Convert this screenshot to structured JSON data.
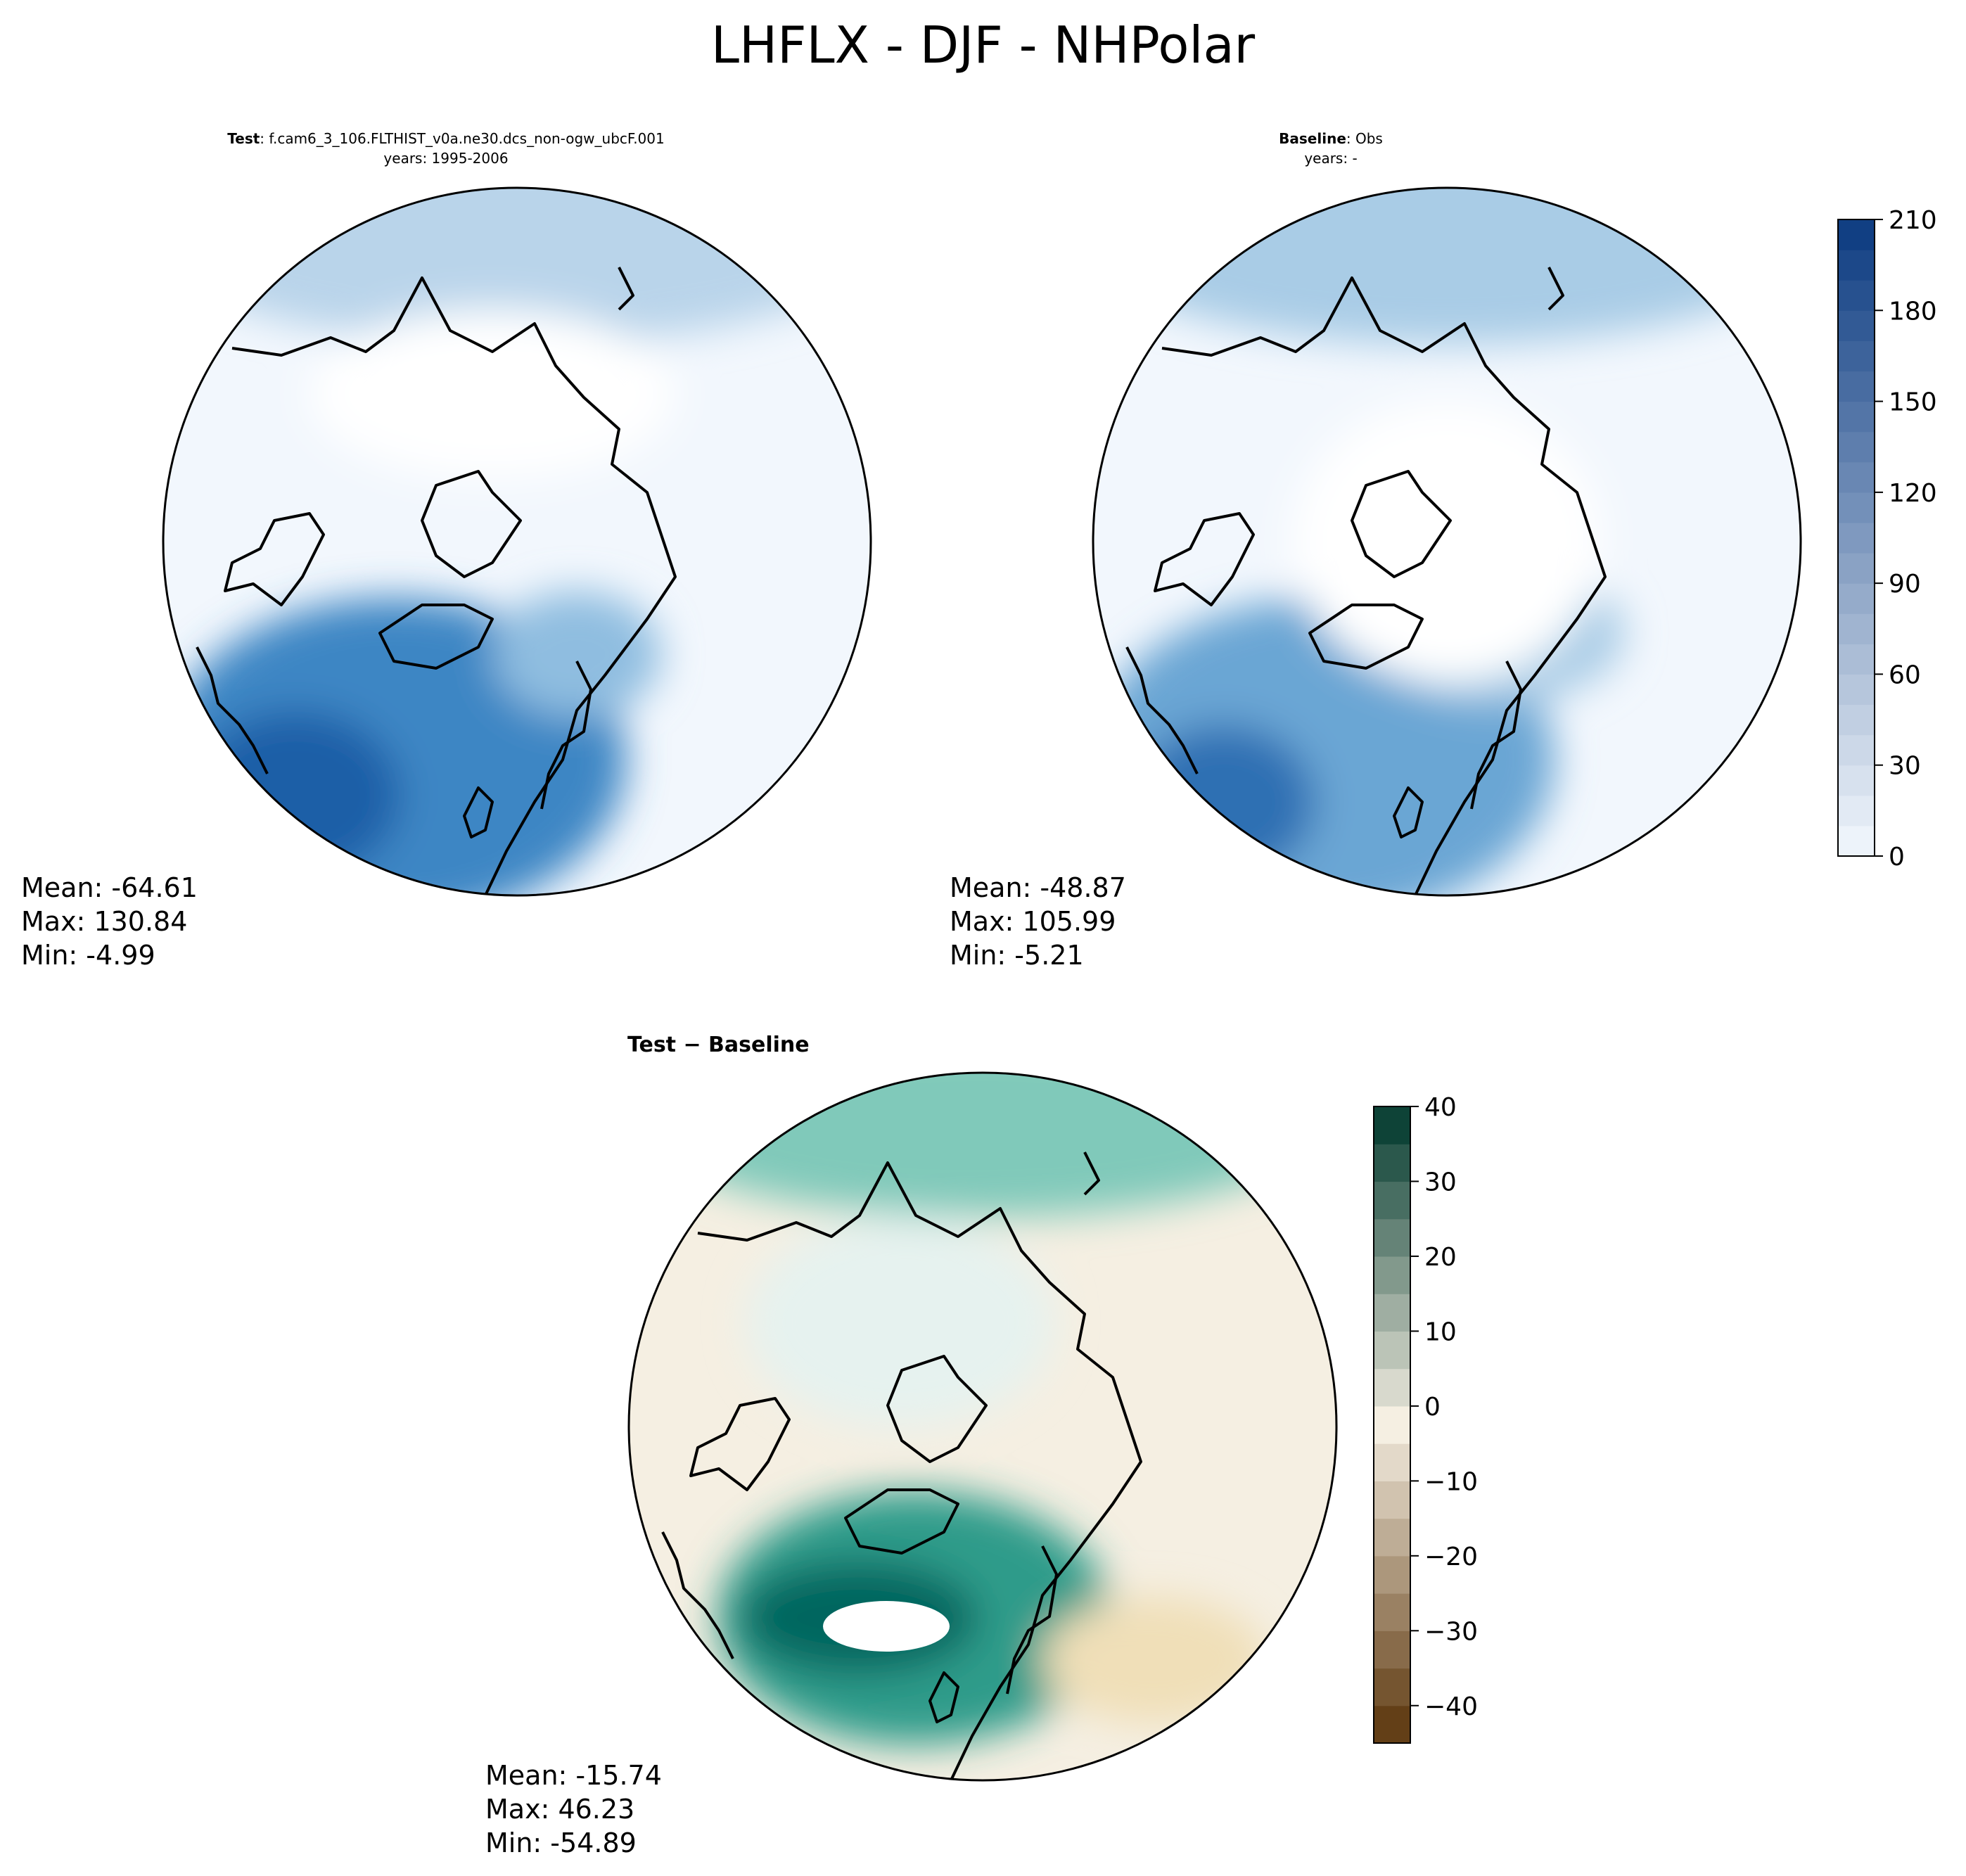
{
  "figure_title": "LHFLX - DJF - NHPolar",
  "panels": {
    "test": {
      "label": "Test",
      "case": ": f.cam6_3_106.FLTHIST_v0a.ne30.dcs_non-ogw_ubcF.001",
      "years": "years: 1995-2006",
      "mean": "Mean: -64.61",
      "max": "Max: 130.84",
      "min": "Min: -4.99"
    },
    "baseline": {
      "label": "Baseline",
      "case": ": Obs",
      "years": "years: -",
      "mean": "Mean: -48.87",
      "max": "Max: 105.99",
      "min": "Min: -5.21"
    },
    "diff": {
      "label": "Test − Baseline",
      "mean": "Mean: -15.74",
      "max": "Max: 46.23",
      "min": "Min: -54.89"
    }
  },
  "colors": {
    "seq_low": "#f2f7fd",
    "seq_high": "#0b3b80",
    "div_neg": "#5a340a",
    "div_mid": "#f5efe2",
    "div_pos": "#00382c"
  },
  "chart_data": [
    {
      "type": "heatmap",
      "name": "Test",
      "projection": "north-polar-stereographic",
      "colorbar": "shared with Baseline",
      "stats": {
        "mean": -64.61,
        "max": 130.84,
        "min": -4.99
      }
    },
    {
      "type": "heatmap",
      "name": "Baseline",
      "projection": "north-polar-stereographic",
      "colorbar": {
        "range": [
          0,
          210
        ],
        "ticks": [
          0,
          30,
          60,
          90,
          120,
          150,
          180,
          210
        ],
        "tick_labels": [
          "0",
          "30",
          "60",
          "90",
          "120",
          "150",
          "180",
          "210"
        ],
        "levels": 21,
        "cmap": "Blues"
      },
      "stats": {
        "mean": -48.87,
        "max": 105.99,
        "min": -5.21
      }
    },
    {
      "type": "heatmap",
      "name": "Test − Baseline",
      "projection": "north-polar-stereographic",
      "colorbar": {
        "range": [
          -45,
          40
        ],
        "ticks": [
          40,
          30,
          20,
          10,
          0,
          -10,
          -20,
          -30,
          -40
        ],
        "tick_labels": [
          "40",
          "30",
          "20",
          "10",
          "0",
          "−10",
          "−20",
          "−30",
          "−40"
        ],
        "levels": 17,
        "cmap": "BrBG"
      },
      "stats": {
        "mean": -15.74,
        "max": 46.23,
        "min": -54.89
      }
    }
  ]
}
